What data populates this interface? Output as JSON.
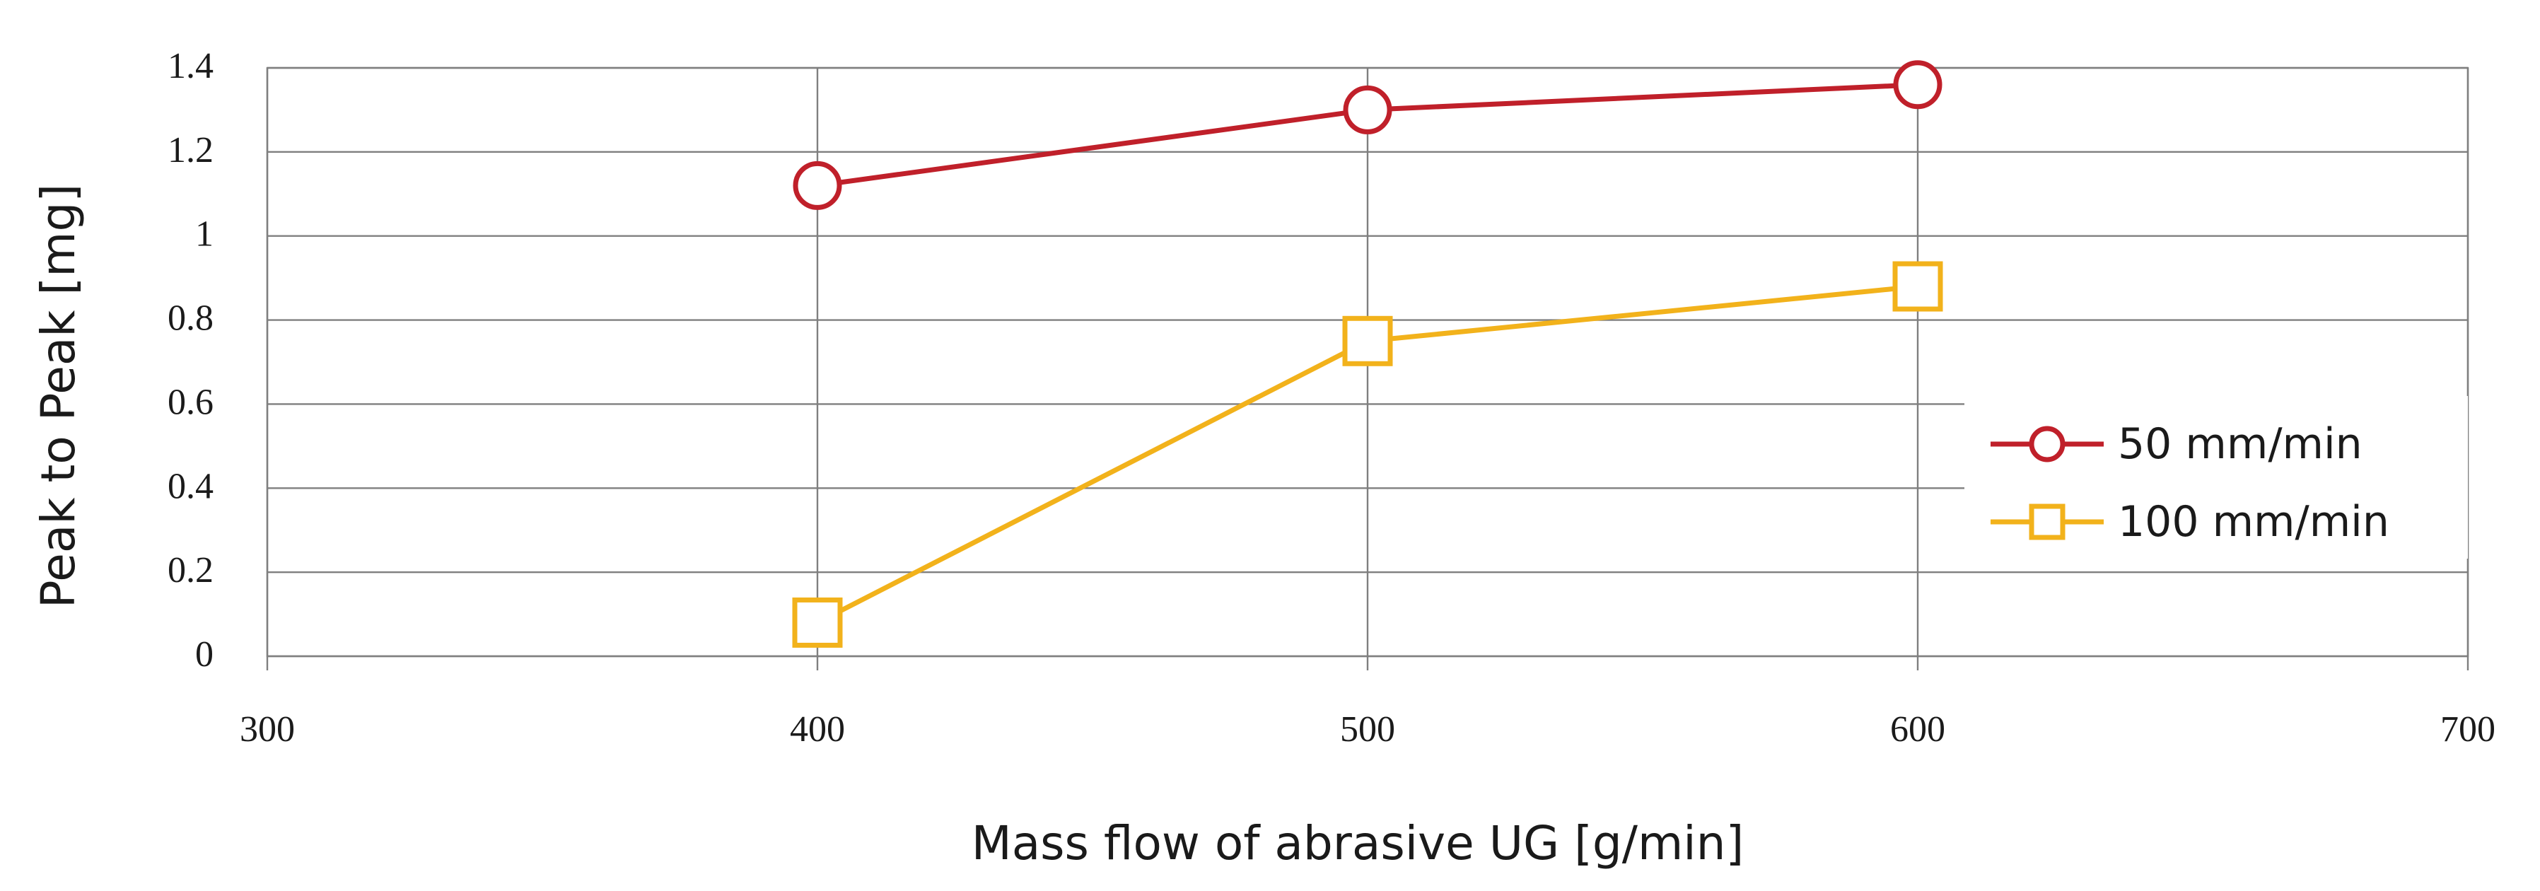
{
  "chart_data": {
    "type": "line",
    "title": "",
    "xlabel": "Mass flow of abrasive UG [g/min]",
    "ylabel": "Peak to Peak [mg]",
    "xlim": [
      300,
      700
    ],
    "ylim": [
      0,
      1.4
    ],
    "x_ticks": [
      {
        "value": 300,
        "label": "300"
      },
      {
        "value": 400,
        "label": "400"
      },
      {
        "value": 500,
        "label": "500"
      },
      {
        "value": 600,
        "label": "600"
      },
      {
        "value": 700,
        "label": "700"
      }
    ],
    "y_ticks": [
      {
        "value": 0,
        "label": "0"
      },
      {
        "value": 0.2,
        "label": "0.2"
      },
      {
        "value": 0.4,
        "label": "0.4"
      },
      {
        "value": 0.6,
        "label": "0.6"
      },
      {
        "value": 0.8,
        "label": "0.8"
      },
      {
        "value": 1.0,
        "label": "1"
      },
      {
        "value": 1.2,
        "label": "1.2"
      },
      {
        "value": 1.4,
        "label": "1.4"
      }
    ],
    "grid": true,
    "legend_position": "right",
    "series": [
      {
        "name": "50 mm/min",
        "color": "#c0202a",
        "marker": "circle",
        "x": [
          400,
          500,
          600
        ],
        "y": [
          1.12,
          1.3,
          1.36
        ]
      },
      {
        "name": "100 mm/min",
        "color": "#f2b21b",
        "marker": "square",
        "x": [
          400,
          500,
          600
        ],
        "y": [
          0.08,
          0.75,
          0.88
        ]
      }
    ]
  }
}
